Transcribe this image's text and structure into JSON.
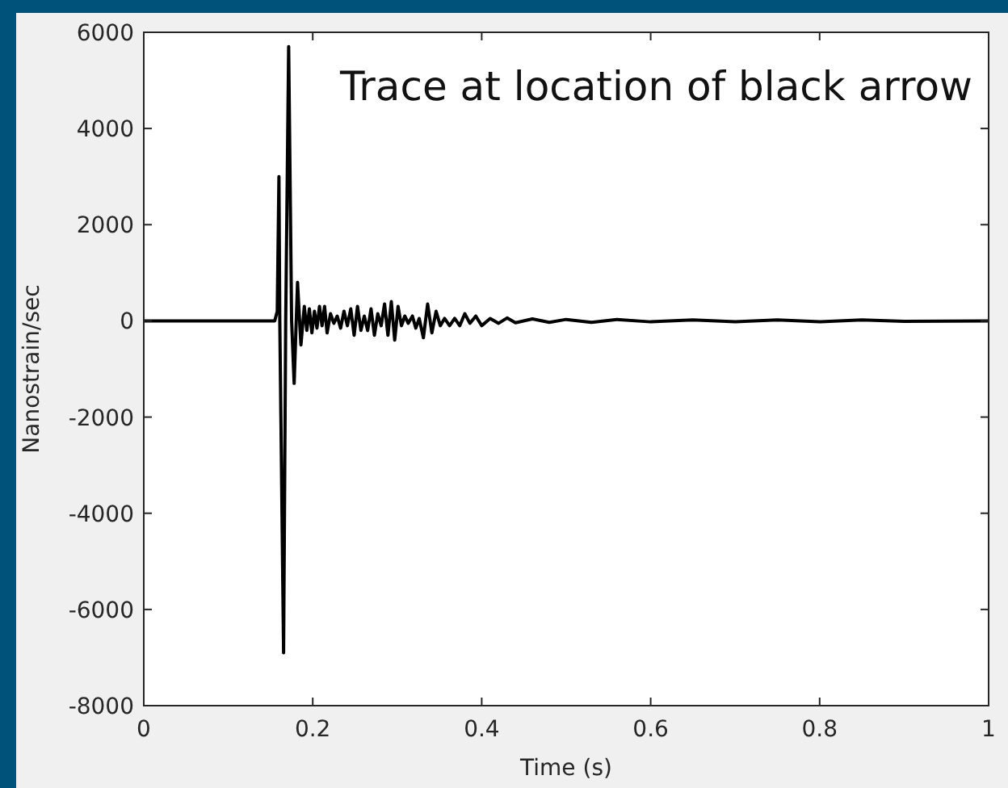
{
  "chart_data": {
    "type": "line",
    "title": "Trace at location of black arrow",
    "xlabel": "Time (s)",
    "ylabel": "Nanostrain/sec",
    "xlim": [
      0,
      1
    ],
    "xticks": [
      0,
      0.2,
      0.4,
      0.6,
      0.8,
      1
    ],
    "ylim": [
      -8000,
      6000
    ],
    "yticks": [
      -8000,
      -6000,
      -4000,
      -2000,
      0,
      2000,
      4000,
      6000
    ],
    "grid": false,
    "marker": "none",
    "line_style": "solid",
    "series": [
      {
        "color": "#000000",
        "x": [
          0,
          0.155,
          0.158,
          0.16,
          0.161,
          0.1655,
          0.168,
          0.1715,
          0.175,
          0.178,
          0.182,
          0.186,
          0.19,
          0.193,
          0.196,
          0.199,
          0.202,
          0.205,
          0.208,
          0.211,
          0.214,
          0.217,
          0.221,
          0.225,
          0.229,
          0.233,
          0.237,
          0.241,
          0.245,
          0.249,
          0.253,
          0.257,
          0.261,
          0.265,
          0.269,
          0.273,
          0.277,
          0.281,
          0.285,
          0.289,
          0.293,
          0.297,
          0.301,
          0.305,
          0.309,
          0.313,
          0.318,
          0.322,
          0.326,
          0.331,
          0.336,
          0.341,
          0.346,
          0.351,
          0.356,
          0.362,
          0.368,
          0.374,
          0.38,
          0.386,
          0.393,
          0.4,
          0.41,
          0.42,
          0.43,
          0.44,
          0.46,
          0.48,
          0.5,
          0.53,
          0.56,
          0.6,
          0.65,
          0.7,
          0.75,
          0.8,
          0.85,
          0.9,
          1
        ],
        "values": [
          0,
          0,
          200,
          3000,
          0,
          -6900,
          0,
          5700,
          0,
          -1300,
          800,
          -500,
          300,
          -200,
          250,
          -250,
          200,
          -150,
          300,
          -100,
          300,
          -250,
          150,
          -50,
          100,
          -150,
          200,
          -100,
          250,
          -300,
          300,
          -200,
          100,
          -200,
          250,
          -300,
          150,
          -100,
          350,
          -300,
          400,
          -400,
          300,
          -100,
          100,
          -50,
          100,
          -150,
          50,
          -350,
          350,
          -250,
          200,
          -100,
          50,
          -100,
          50,
          -100,
          150,
          -50,
          100,
          -100,
          50,
          -50,
          60,
          -40,
          40,
          -30,
          30,
          -30,
          30,
          -20,
          20,
          -20,
          20,
          -20,
          20,
          -10,
          0
        ]
      }
    ]
  }
}
